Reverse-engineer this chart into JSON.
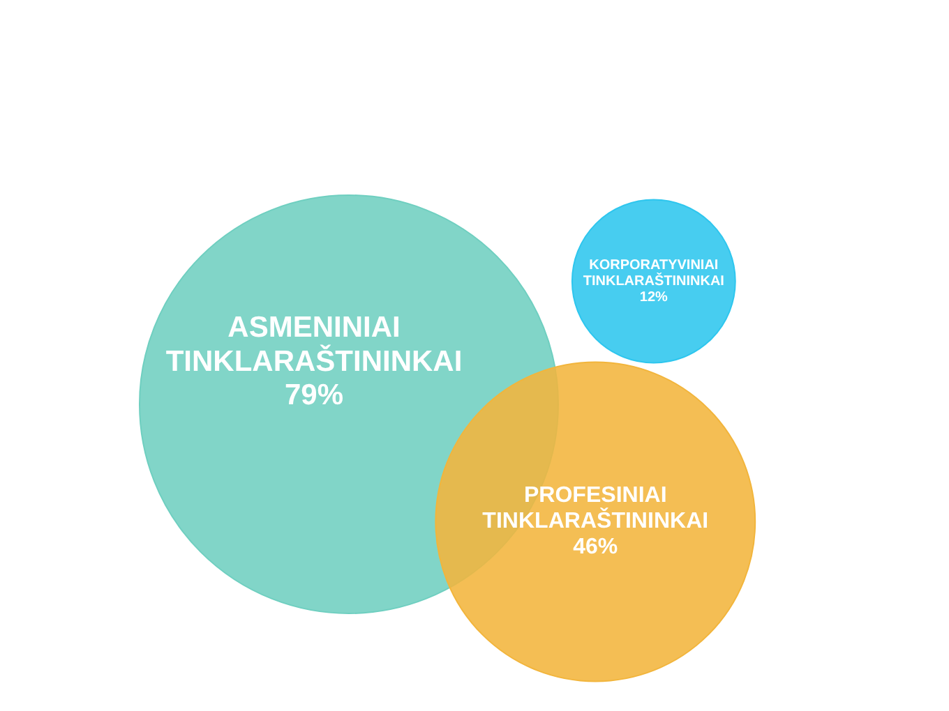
{
  "chart_data": {
    "type": "other",
    "categories": [
      "ASMENINIAI TINKLARAŠTININKAI",
      "KORPORATYVINIAI TINKLARAŠTININKAI",
      "PROFESINIAI TINKLARAŠTININKAI"
    ],
    "values": [
      79,
      12,
      46
    ],
    "value_labels": [
      "79%",
      "12%",
      "46%"
    ],
    "colors": [
      "#6fcfc0",
      "#2ec6ee",
      "#f2b53c"
    ],
    "legend": false
  }
}
